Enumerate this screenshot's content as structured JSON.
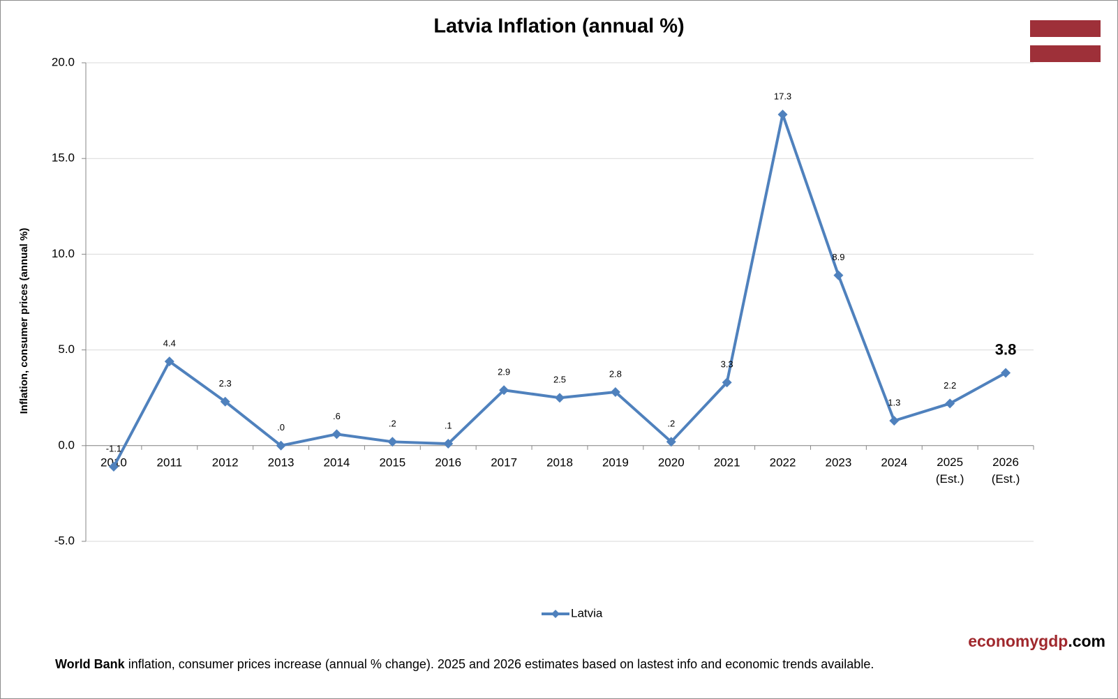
{
  "chart_data": {
    "type": "line",
    "title": "Latvia Inflation (annual %)",
    "y_label": "Inflation, consumer prices (annual %)",
    "categories": [
      "2010",
      "2011",
      "2012",
      "2013",
      "2014",
      "2015",
      "2016",
      "2017",
      "2018",
      "2019",
      "2020",
      "2021",
      "2022",
      "2023",
      "2024",
      "2025 (Est.)",
      "2026 (Est.)"
    ],
    "series": [
      {
        "name": "Latvia",
        "color": "#4f81bd",
        "values": [
          -1.1,
          4.4,
          2.3,
          0.0,
          0.6,
          0.2,
          0.1,
          2.9,
          2.5,
          2.8,
          0.2,
          3.3,
          17.3,
          8.9,
          1.3,
          2.2,
          3.8
        ],
        "value_labels": [
          "-1.1",
          "4.4",
          "2.3",
          ".0",
          ".6",
          ".2",
          ".1",
          "2.9",
          "2.5",
          "2.8",
          ".2",
          "3.3",
          "17.3",
          "8.9",
          "1.3",
          "2.2",
          "3.8"
        ]
      }
    ],
    "ylim": [
      -5,
      20
    ],
    "yticks": [
      {
        "value": -5,
        "label": "-5.0"
      },
      {
        "value": 0,
        "label": "0.0"
      },
      {
        "value": 5,
        "label": "5.0"
      },
      {
        "value": 10,
        "label": "10.0"
      },
      {
        "value": 15,
        "label": "15.0"
      },
      {
        "value": 20,
        "label": "20.0"
      }
    ],
    "grid": true,
    "legend": "bottom",
    "emphasize_last_label": true,
    "watermark": {
      "main": "economygdp",
      "suffix": ".com"
    },
    "footnote": {
      "bold": "World Bank",
      "text": " inflation, consumer prices increase (annual % change).  2025 and 2026 estimates based on lastest info and economic trends available."
    }
  }
}
